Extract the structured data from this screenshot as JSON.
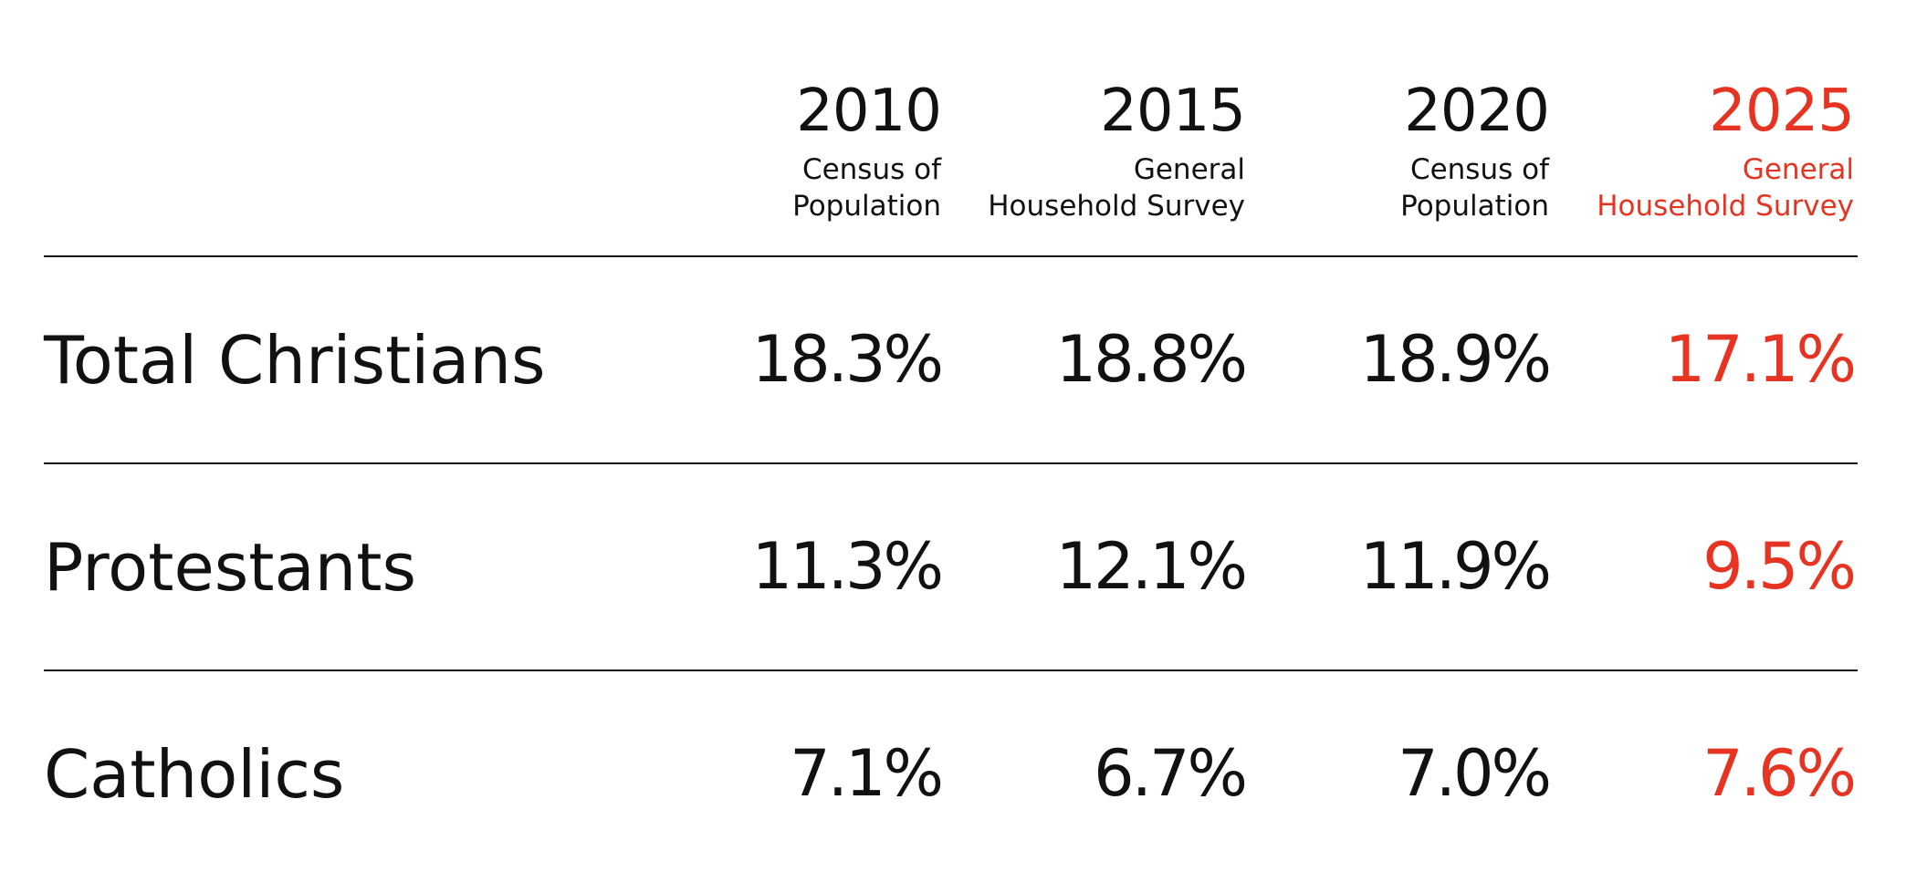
{
  "accent_color": "#e63322",
  "text_color": "#111111",
  "chart_data": {
    "type": "table",
    "columns": [
      {
        "year": "2010",
        "source": [
          "Census of",
          "Population"
        ],
        "highlight": false
      },
      {
        "year": "2015",
        "source": [
          "General",
          "Household Survey"
        ],
        "highlight": false
      },
      {
        "year": "2020",
        "source": [
          "Census of",
          "Population"
        ],
        "highlight": false
      },
      {
        "year": "2025",
        "source": [
          "General",
          "Household Survey"
        ],
        "highlight": true
      }
    ],
    "rows": [
      {
        "label": "Total Christians",
        "values": [
          18.3,
          18.8,
          18.9,
          17.1
        ],
        "display": [
          "18.3%",
          "18.8%",
          "18.9%",
          "17.1%"
        ]
      },
      {
        "label": "Protestants",
        "values": [
          11.3,
          12.1,
          11.9,
          9.5
        ],
        "display": [
          "11.3%",
          "12.1%",
          "11.9%",
          "9.5%"
        ]
      },
      {
        "label": "Catholics",
        "values": [
          7.1,
          6.7,
          7.0,
          7.6
        ],
        "display": [
          "7.1%",
          "6.7%",
          "7.0%",
          "7.6%"
        ]
      }
    ]
  }
}
